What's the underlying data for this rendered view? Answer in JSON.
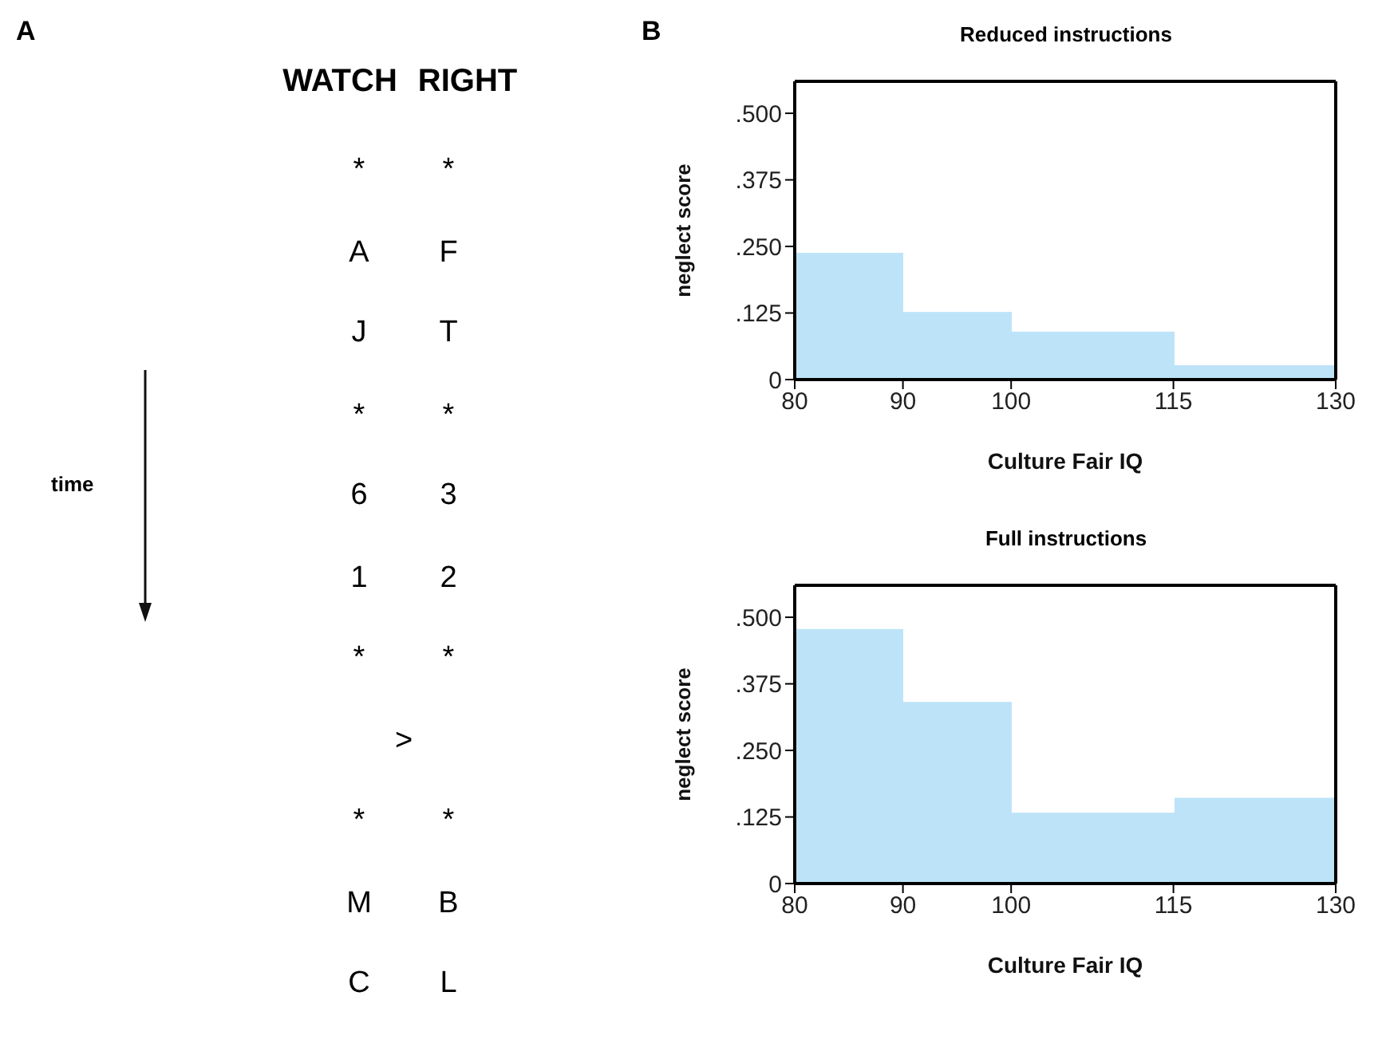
{
  "chart_data": [
    {
      "type": "other",
      "title": "A",
      "ylabel": "time",
      "annotations": [
        "WATCH RIGHT",
        "* *",
        "A F",
        "J T",
        "* *",
        "6 3",
        "1 2",
        "* *",
        ">",
        "* *",
        "M B",
        "C L"
      ]
    },
    {
      "type": "histogram",
      "title": "Reduced instructions",
      "xlabel": "Culture Fair IQ",
      "ylabel": "neglect score",
      "annotations": [
        "B"
      ],
      "bins": [
        80,
        90,
        100,
        115,
        130
      ],
      "values": [
        0.238,
        0.127,
        0.09,
        0.027
      ],
      "color": "#bde3f8",
      "xlim": [
        80,
        130
      ],
      "xticks": [
        80,
        90,
        100,
        115,
        130
      ],
      "ylim": [
        0,
        0.56
      ],
      "yticks": [
        0,
        {
          "value": 0.125,
          "label": ".125"
        },
        {
          "value": 0.25,
          "label": ".250"
        },
        {
          "value": 0.375,
          "label": ".375"
        },
        {
          "value": 0.5,
          "label": ".500"
        }
      ]
    },
    {
      "type": "histogram",
      "title": "Full instructions",
      "xlabel": "Culture Fair IQ",
      "ylabel": "neglect score",
      "bins": [
        80,
        90,
        100,
        115,
        130
      ],
      "values": [
        0.478,
        0.341,
        0.133,
        0.161
      ],
      "color": "#bde3f8",
      "xlim": [
        80,
        130
      ],
      "xticks": [
        80,
        90,
        100,
        115,
        130
      ],
      "ylim": [
        0,
        0.56
      ],
      "yticks": [
        0,
        {
          "value": 0.125,
          "label": ".125"
        },
        {
          "value": 0.25,
          "label": ".250"
        },
        {
          "value": 0.375,
          "label": ".375"
        },
        {
          "value": 0.5,
          "label": ".500"
        }
      ]
    }
  ]
}
